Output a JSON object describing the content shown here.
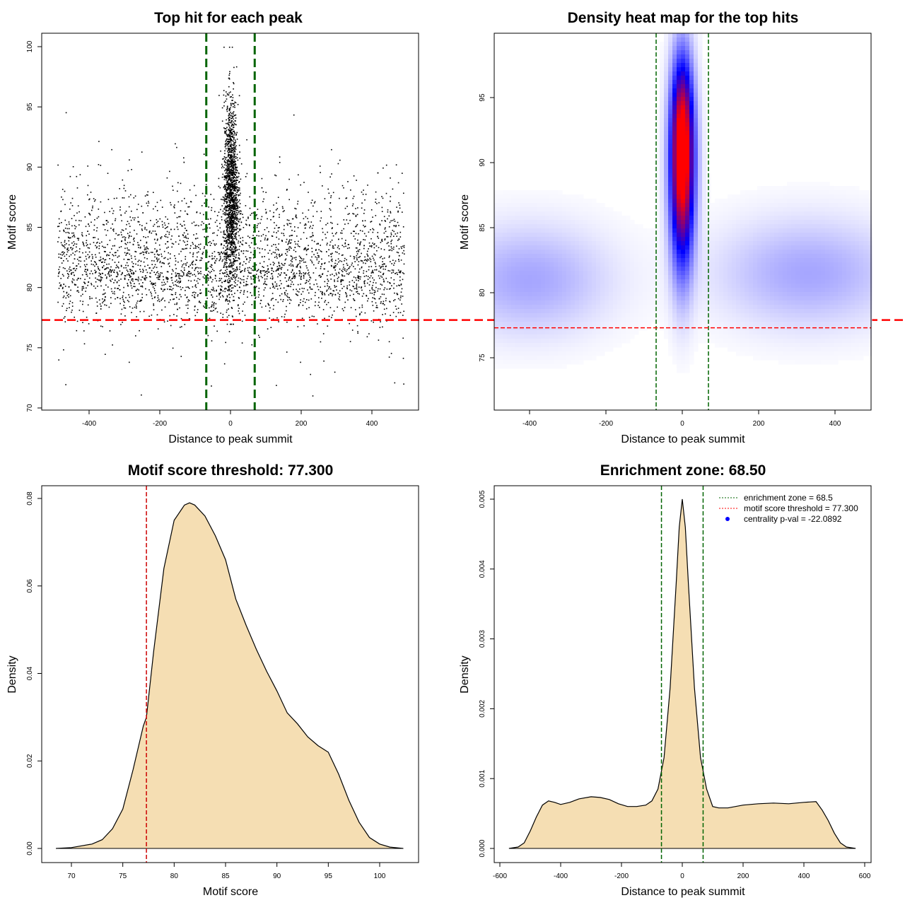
{
  "colors": {
    "density_fill": "#f5deb3",
    "zone_line": "#006400",
    "threshold_line": "#ff0000",
    "heat_low": "#ffffff",
    "heat_mid": "#0000ff",
    "heat_high": "#ff0000",
    "point": "#000000",
    "legend_pval_point": "#0000ff"
  },
  "chart_data": [
    {
      "id": "scatter",
      "type": "scatter",
      "title": "Top hit for each peak",
      "xlabel": "Distance to peak summit",
      "ylabel": "Motif score",
      "xlim": [
        -500,
        500
      ],
      "ylim": [
        70,
        100
      ],
      "xticks": [
        -400,
        -200,
        0,
        200,
        400
      ],
      "yticks": [
        70,
        75,
        80,
        85,
        90,
        95,
        100
      ],
      "vlines": [
        -68.5,
        68.5
      ],
      "hline": 77.3,
      "points": {
        "description_free": true,
        "background": {
          "n": 3200,
          "x_range": [
            -490,
            490
          ],
          "y_mode": 81.5
        },
        "central": {
          "n": 1500,
          "x_sd": 10,
          "y_mean": 88,
          "y_range": [
            77,
            100
          ]
        }
      }
    },
    {
      "id": "heatmap",
      "type": "heatmap",
      "title": "Density heat map for the top hits",
      "xlabel": "Distance to peak summit",
      "ylabel": "Motif score",
      "xlim": [
        -490,
        490
      ],
      "ylim": [
        71,
        100
      ],
      "xticks": [
        -400,
        -200,
        0,
        200,
        400
      ],
      "yticks": [
        75,
        80,
        85,
        90,
        95
      ],
      "vlines": [
        -68.5,
        68.5
      ],
      "hline": 77.3,
      "density_modes": [
        {
          "x": 0,
          "y": 89,
          "sx": 20,
          "sy": 4.5,
          "w": 1.0
        },
        {
          "x": 0,
          "y": 93,
          "sx": 18,
          "sy": 3.5,
          "w": 0.55
        },
        {
          "x": -400,
          "y": 81,
          "sx": 130,
          "sy": 2.6,
          "w": 0.12
        },
        {
          "x": 330,
          "y": 81.5,
          "sx": 150,
          "sy": 2.6,
          "w": 0.12
        }
      ]
    },
    {
      "id": "score-density",
      "type": "area",
      "title": "Motif score threshold: 77.300",
      "xlabel": "Motif score",
      "ylabel": "Density",
      "xlim": [
        67.5,
        103
      ],
      "ylim": [
        -0.0025,
        0.0825
      ],
      "xticks": [
        70,
        75,
        80,
        85,
        90,
        95,
        100
      ],
      "yticks": [
        0.0,
        0.02,
        0.04,
        0.06,
        0.08
      ],
      "ytick_labels": [
        "0.00",
        "0.02",
        "0.04",
        "0.06",
        "0.08"
      ],
      "vline": 77.3,
      "x": [
        68.5,
        70,
        72,
        73,
        74,
        75,
        76,
        77,
        77.3,
        78,
        79,
        80,
        81,
        81.5,
        82,
        83,
        84,
        85,
        86,
        87,
        88,
        89,
        90,
        91,
        92,
        93,
        94,
        95,
        96,
        97,
        98,
        99,
        100,
        101,
        102.3
      ],
      "y": [
        0.0,
        0.0002,
        0.001,
        0.002,
        0.0045,
        0.009,
        0.018,
        0.028,
        0.03,
        0.045,
        0.064,
        0.075,
        0.0785,
        0.079,
        0.0785,
        0.076,
        0.0715,
        0.066,
        0.057,
        0.051,
        0.0455,
        0.0405,
        0.036,
        0.031,
        0.0285,
        0.0255,
        0.0235,
        0.022,
        0.017,
        0.011,
        0.006,
        0.0025,
        0.001,
        0.0003,
        0.0
      ]
    },
    {
      "id": "distance-density",
      "type": "area",
      "title": "Enrichment zone: 68.50",
      "xlabel": "Distance to peak summit",
      "ylabel": "Density",
      "xlim": [
        -605,
        605
      ],
      "ylim": [
        -0.00015,
        0.00515
      ],
      "xticks": [
        -600,
        -400,
        -200,
        0,
        200,
        400,
        600
      ],
      "yticks": [
        0.0,
        0.001,
        0.002,
        0.003,
        0.004,
        0.005
      ],
      "ytick_labels": [
        "0.000",
        "0.001",
        "0.002",
        "0.003",
        "0.004",
        "0.005"
      ],
      "vlines": [
        -68.5,
        68.5
      ],
      "x": [
        -570,
        -540,
        -520,
        -500,
        -480,
        -460,
        -440,
        -420,
        -400,
        -370,
        -340,
        -300,
        -270,
        -240,
        -210,
        -180,
        -150,
        -120,
        -100,
        -80,
        -60,
        -40,
        -20,
        -10,
        0,
        10,
        20,
        40,
        60,
        80,
        100,
        120,
        150,
        200,
        250,
        300,
        350,
        400,
        440,
        460,
        480,
        500,
        520,
        540,
        570
      ],
      "y": [
        0.0,
        2e-05,
        8e-05,
        0.00025,
        0.00045,
        0.00062,
        0.00068,
        0.00066,
        0.00063,
        0.00066,
        0.00071,
        0.00074,
        0.00073,
        0.0007,
        0.00064,
        0.0006,
        0.0006,
        0.00062,
        0.00068,
        0.00085,
        0.0013,
        0.0023,
        0.0038,
        0.0046,
        0.005,
        0.0046,
        0.0038,
        0.0023,
        0.0013,
        0.00085,
        0.0006,
        0.00058,
        0.00058,
        0.00062,
        0.00064,
        0.00065,
        0.00064,
        0.00066,
        0.00067,
        0.00055,
        0.0004,
        0.00022,
        8e-05,
        2e-05,
        0.0
      ],
      "legend": [
        {
          "label": "enrichment zone = 68.5",
          "style": "dotted",
          "color": "#006400"
        },
        {
          "label": "motif score threshold = 77.300",
          "style": "dotted",
          "color": "#ff0000"
        },
        {
          "label": "centrality p-val = -22.0892",
          "style": "point",
          "color": "#0000ff"
        }
      ]
    }
  ]
}
